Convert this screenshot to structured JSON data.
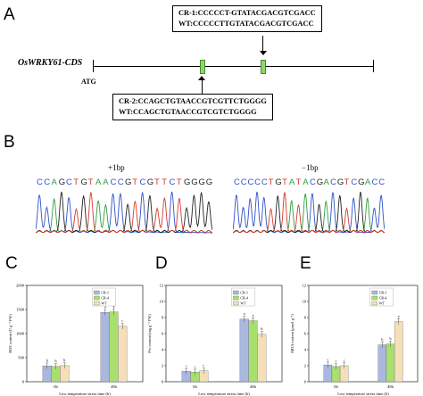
{
  "panels": {
    "a": "A",
    "b": "B",
    "c": "C",
    "d": "D",
    "e": "E"
  },
  "panelA": {
    "gene_label": "OsWRKY61-CDS",
    "start_label": "ATG",
    "box1": {
      "line1": "CR-1:CCCCCT-GTATACGACGTCGACC",
      "line2": "WT:CCCCCTTGTATACGACGTCGACC"
    },
    "box2": {
      "line1": "CR-2:CCAGCTGTAACCGTCGTTCTGGGG",
      "line2": "WT:CCAGCTGTAACCGTCGTCTGGGG"
    }
  },
  "panelB": {
    "left": {
      "mutation": "+1bp",
      "sequence": [
        "C",
        "C",
        "A",
        "G",
        "C",
        "T",
        "G",
        "T",
        "A",
        "A",
        "C",
        "C",
        "G",
        "T",
        "C",
        "G",
        "T",
        "T",
        "C",
        "T",
        "G",
        "G",
        "G",
        "G"
      ]
    },
    "right": {
      "mutation": "−1bp",
      "sequence": [
        "C",
        "C",
        "C",
        "C",
        "C",
        "T",
        "G",
        "T",
        "A",
        "T",
        "A",
        "C",
        "G",
        "A",
        "C",
        "G",
        "T",
        "C",
        "G",
        "A",
        "C",
        "C"
      ]
    },
    "colors": {
      "A": "#2e9e3e",
      "C": "#2f52c8",
      "G": "#222222",
      "T": "#d63a2a"
    }
  },
  "charts": {
    "series_colors": [
      "#aab8e0",
      "#a8e070",
      "#f4dfb8"
    ],
    "legend": [
      "CR-1",
      "CR-4",
      "WT"
    ]
  },
  "chart_data": [
    {
      "type": "bar",
      "categories": [
        "0h",
        "48h"
      ],
      "ylabel": "ROS content (U g⁻¹ FW)",
      "xlabel": "Low temperature stress time (h)",
      "ylim": [
        0,
        2000
      ],
      "yticks": [
        "0",
        "500",
        "1000",
        "1500",
        "2000"
      ],
      "series": [
        {
          "name": "CR-1",
          "values": [
            330,
            1440
          ]
        },
        {
          "name": "CR-4",
          "values": [
            320,
            1450
          ]
        },
        {
          "name": "WT",
          "values": [
            335,
            1150
          ]
        }
      ],
      "sig": [
        [
          "b",
          "b",
          "b"
        ],
        [
          "a",
          "a",
          "c"
        ]
      ]
    },
    {
      "type": "bar",
      "categories": [
        "0h",
        "48h"
      ],
      "ylabel": "Pro content (mg g⁻¹ FW)",
      "xlabel": "Low temperature stress time (h)",
      "ylim": [
        0,
        12
      ],
      "yticks": [
        "0",
        "2",
        "4",
        "6",
        "8",
        "10",
        "12"
      ],
      "series": [
        {
          "name": "CR-1",
          "values": [
            1.3,
            7.8
          ]
        },
        {
          "name": "CR-4",
          "values": [
            1.2,
            7.6
          ]
        },
        {
          "name": "WT",
          "values": [
            1.35,
            5.9
          ]
        }
      ],
      "sig": [
        [
          "c",
          "c",
          "c"
        ],
        [
          "a",
          "a",
          "b"
        ]
      ]
    },
    {
      "type": "bar",
      "categories": [
        "0h",
        "48h"
      ],
      "ylabel": "MDA content (µmol g⁻¹)",
      "xlabel": "Low temperature stress time (h)",
      "ylim": [
        0,
        12
      ],
      "yticks": [
        "0",
        "2",
        "4",
        "6",
        "8",
        "10",
        "12"
      ],
      "series": [
        {
          "name": "CR-1",
          "values": [
            2.1,
            4.6
          ]
        },
        {
          "name": "CR-4",
          "values": [
            1.9,
            4.7
          ]
        },
        {
          "name": "WT",
          "values": [
            2.0,
            7.5
          ]
        }
      ],
      "sig": [
        [
          "c",
          "c",
          "c"
        ],
        [
          "b",
          "b",
          "a"
        ]
      ]
    }
  ]
}
